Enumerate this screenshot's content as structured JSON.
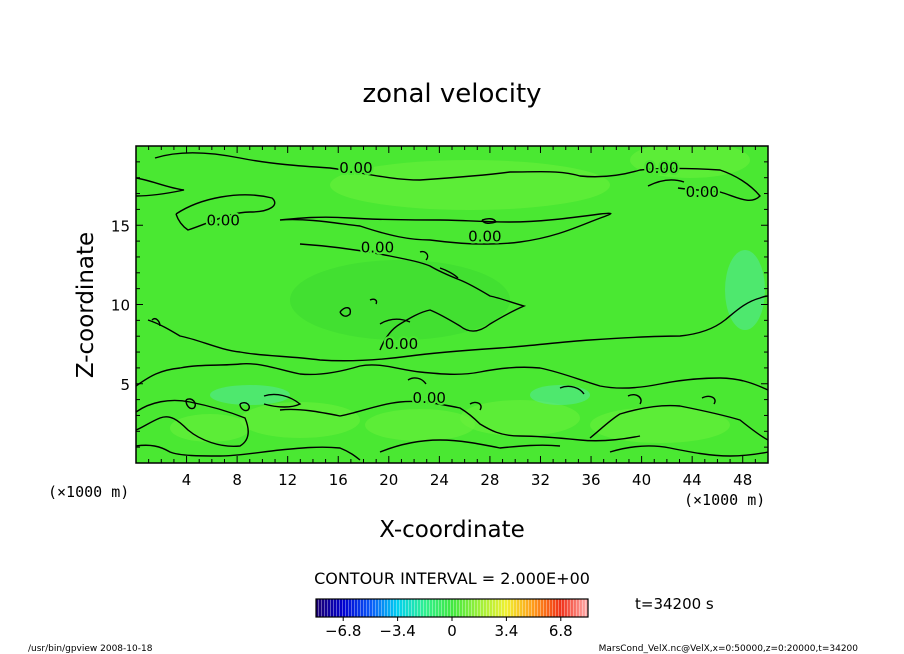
{
  "chart_data": {
    "type": "heatmap",
    "title": "zonal velocity",
    "xlabel": "X-coordinate",
    "ylabel": "Z-coordinate",
    "x_unit": "(×1000 m)",
    "y_unit": "(×1000 m)",
    "xlim": [
      0,
      50
    ],
    "ylim": [
      0,
      20
    ],
    "x_ticks": [
      4,
      8,
      12,
      16,
      20,
      24,
      28,
      32,
      36,
      40,
      44,
      48
    ],
    "y_ticks": [
      5,
      10,
      15
    ],
    "contour_interval_text": "CONTOUR INTERVAL = 2.000E+00",
    "contour_labels": [
      {
        "text": "0.00",
        "x": 17.4,
        "z": 18.6
      },
      {
        "text": "0.00",
        "x": 41.6,
        "z": 18.6
      },
      {
        "text": "0.00",
        "x": 44.8,
        "z": 17.1
      },
      {
        "text": "0.00",
        "x": 6.9,
        "z": 15.3
      },
      {
        "text": "0.00",
        "x": 19.1,
        "z": 13.6
      },
      {
        "text": "0.00",
        "x": 27.6,
        "z": 14.3
      },
      {
        "text": "0.00",
        "x": 21.0,
        "z": 7.5
      },
      {
        "text": "0.00",
        "x": 23.2,
        "z": 4.1
      }
    ],
    "colorbar": {
      "ticks": [
        "−6.8",
        "−3.4",
        "0",
        "3.4",
        "6.8"
      ],
      "range": [
        -8.5,
        8.5
      ],
      "colors": [
        "#1c0070",
        "#0000d0",
        "#0a58f8",
        "#00d0f0",
        "#30f090",
        "#40e840",
        "#9cf03a",
        "#f0f030",
        "#ff9a1a",
        "#f03018",
        "#ffb0b0"
      ]
    },
    "field_colors": {
      "background": "#4ae832",
      "light": "#6cf03c",
      "cyan_tint": "#52e8a0",
      "dark": "#3cd832"
    },
    "time_label": "t=34200 s",
    "grid": false
  },
  "footer": {
    "left": "/usr/bin/gpview   2008-10-18",
    "right": "MarsCond_VelX.nc@VelX,x=0:50000,z=0:20000,t=34200"
  }
}
